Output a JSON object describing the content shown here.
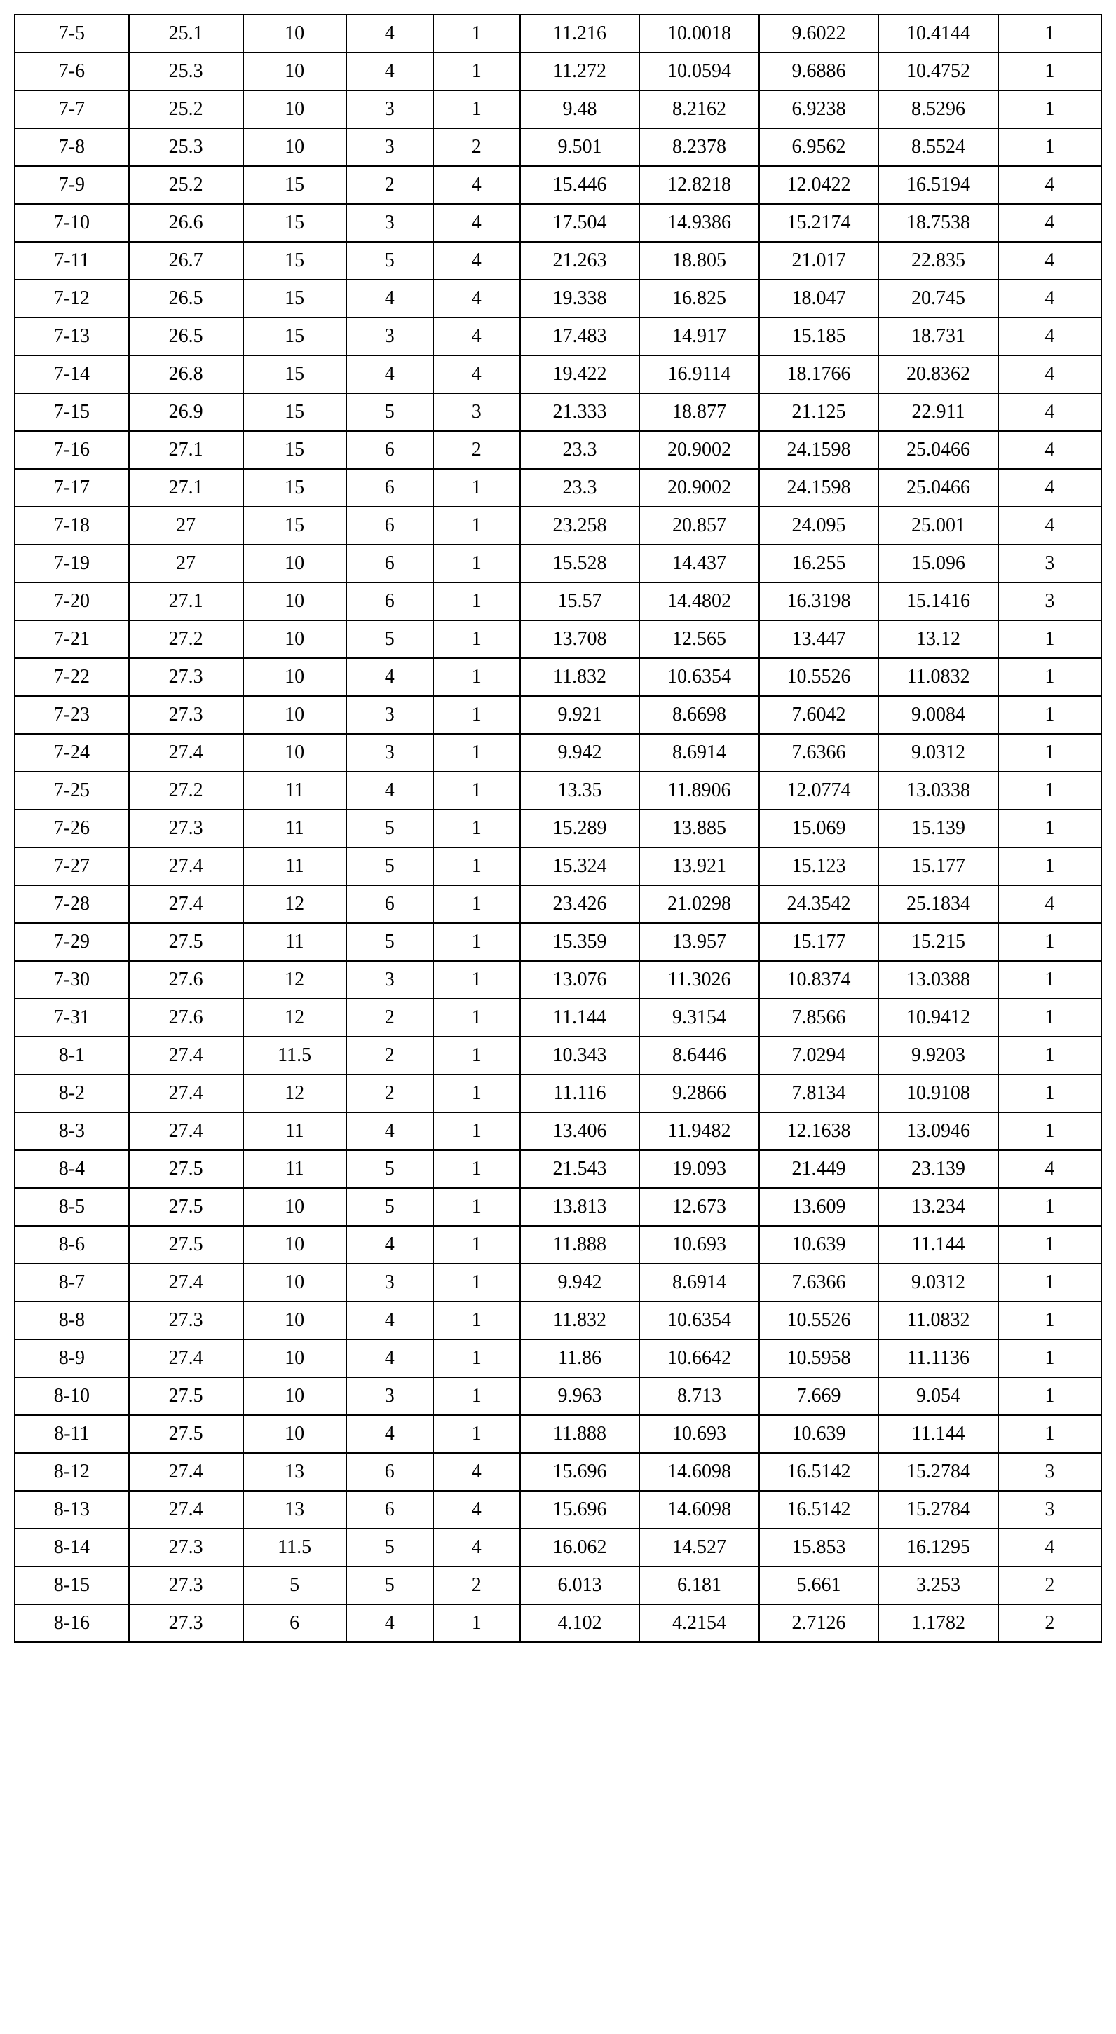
{
  "table": {
    "type": "table",
    "background_color": "#ffffff",
    "border_color": "#000000",
    "border_width": 2,
    "font_family": "Times New Roman",
    "font_size": 28,
    "text_color": "#000000",
    "column_widths_pct": [
      10.5,
      10.5,
      9.5,
      8,
      8,
      11,
      11,
      11,
      11,
      9.5
    ],
    "rows": [
      [
        "7-5",
        "25.1",
        "10",
        "4",
        "1",
        "11.216",
        "10.0018",
        "9.6022",
        "10.4144",
        "1"
      ],
      [
        "7-6",
        "25.3",
        "10",
        "4",
        "1",
        "11.272",
        "10.0594",
        "9.6886",
        "10.4752",
        "1"
      ],
      [
        "7-7",
        "25.2",
        "10",
        "3",
        "1",
        "9.48",
        "8.2162",
        "6.9238",
        "8.5296",
        "1"
      ],
      [
        "7-8",
        "25.3",
        "10",
        "3",
        "2",
        "9.501",
        "8.2378",
        "6.9562",
        "8.5524",
        "1"
      ],
      [
        "7-9",
        "25.2",
        "15",
        "2",
        "4",
        "15.446",
        "12.8218",
        "12.0422",
        "16.5194",
        "4"
      ],
      [
        "7-10",
        "26.6",
        "15",
        "3",
        "4",
        "17.504",
        "14.9386",
        "15.2174",
        "18.7538",
        "4"
      ],
      [
        "7-11",
        "26.7",
        "15",
        "5",
        "4",
        "21.263",
        "18.805",
        "21.017",
        "22.835",
        "4"
      ],
      [
        "7-12",
        "26.5",
        "15",
        "4",
        "4",
        "19.338",
        "16.825",
        "18.047",
        "20.745",
        "4"
      ],
      [
        "7-13",
        "26.5",
        "15",
        "3",
        "4",
        "17.483",
        "14.917",
        "15.185",
        "18.731",
        "4"
      ],
      [
        "7-14",
        "26.8",
        "15",
        "4",
        "4",
        "19.422",
        "16.9114",
        "18.1766",
        "20.8362",
        "4"
      ],
      [
        "7-15",
        "26.9",
        "15",
        "5",
        "3",
        "21.333",
        "18.877",
        "21.125",
        "22.911",
        "4"
      ],
      [
        "7-16",
        "27.1",
        "15",
        "6",
        "2",
        "23.3",
        "20.9002",
        "24.1598",
        "25.0466",
        "4"
      ],
      [
        "7-17",
        "27.1",
        "15",
        "6",
        "1",
        "23.3",
        "20.9002",
        "24.1598",
        "25.0466",
        "4"
      ],
      [
        "7-18",
        "27",
        "15",
        "6",
        "1",
        "23.258",
        "20.857",
        "24.095",
        "25.001",
        "4"
      ],
      [
        "7-19",
        "27",
        "10",
        "6",
        "1",
        "15.528",
        "14.437",
        "16.255",
        "15.096",
        "3"
      ],
      [
        "7-20",
        "27.1",
        "10",
        "6",
        "1",
        "15.57",
        "14.4802",
        "16.3198",
        "15.1416",
        "3"
      ],
      [
        "7-21",
        "27.2",
        "10",
        "5",
        "1",
        "13.708",
        "12.565",
        "13.447",
        "13.12",
        "1"
      ],
      [
        "7-22",
        "27.3",
        "10",
        "4",
        "1",
        "11.832",
        "10.6354",
        "10.5526",
        "11.0832",
        "1"
      ],
      [
        "7-23",
        "27.3",
        "10",
        "3",
        "1",
        "9.921",
        "8.6698",
        "7.6042",
        "9.0084",
        "1"
      ],
      [
        "7-24",
        "27.4",
        "10",
        "3",
        "1",
        "9.942",
        "8.6914",
        "7.6366",
        "9.0312",
        "1"
      ],
      [
        "7-25",
        "27.2",
        "11",
        "4",
        "1",
        "13.35",
        "11.8906",
        "12.0774",
        "13.0338",
        "1"
      ],
      [
        "7-26",
        "27.3",
        "11",
        "5",
        "1",
        "15.289",
        "13.885",
        "15.069",
        "15.139",
        "1"
      ],
      [
        "7-27",
        "27.4",
        "11",
        "5",
        "1",
        "15.324",
        "13.921",
        "15.123",
        "15.177",
        "1"
      ],
      [
        "7-28",
        "27.4",
        "12",
        "6",
        "1",
        "23.426",
        "21.0298",
        "24.3542",
        "25.1834",
        "4"
      ],
      [
        "7-29",
        "27.5",
        "11",
        "5",
        "1",
        "15.359",
        "13.957",
        "15.177",
        "15.215",
        "1"
      ],
      [
        "7-30",
        "27.6",
        "12",
        "3",
        "1",
        "13.076",
        "11.3026",
        "10.8374",
        "13.0388",
        "1"
      ],
      [
        "7-31",
        "27.6",
        "12",
        "2",
        "1",
        "11.144",
        "9.3154",
        "7.8566",
        "10.9412",
        "1"
      ],
      [
        "8-1",
        "27.4",
        "11.5",
        "2",
        "1",
        "10.343",
        "8.6446",
        "7.0294",
        "9.9203",
        "1"
      ],
      [
        "8-2",
        "27.4",
        "12",
        "2",
        "1",
        "11.116",
        "9.2866",
        "7.8134",
        "10.9108",
        "1"
      ],
      [
        "8-3",
        "27.4",
        "11",
        "4",
        "1",
        "13.406",
        "11.9482",
        "12.1638",
        "13.0946",
        "1"
      ],
      [
        "8-4",
        "27.5",
        "11",
        "5",
        "1",
        "21.543",
        "19.093",
        "21.449",
        "23.139",
        "4"
      ],
      [
        "8-5",
        "27.5",
        "10",
        "5",
        "1",
        "13.813",
        "12.673",
        "13.609",
        "13.234",
        "1"
      ],
      [
        "8-6",
        "27.5",
        "10",
        "4",
        "1",
        "11.888",
        "10.693",
        "10.639",
        "11.144",
        "1"
      ],
      [
        "8-7",
        "27.4",
        "10",
        "3",
        "1",
        "9.942",
        "8.6914",
        "7.6366",
        "9.0312",
        "1"
      ],
      [
        "8-8",
        "27.3",
        "10",
        "4",
        "1",
        "11.832",
        "10.6354",
        "10.5526",
        "11.0832",
        "1"
      ],
      [
        "8-9",
        "27.4",
        "10",
        "4",
        "1",
        "11.86",
        "10.6642",
        "10.5958",
        "11.1136",
        "1"
      ],
      [
        "8-10",
        "27.5",
        "10",
        "3",
        "1",
        "9.963",
        "8.713",
        "7.669",
        "9.054",
        "1"
      ],
      [
        "8-11",
        "27.5",
        "10",
        "4",
        "1",
        "11.888",
        "10.693",
        "10.639",
        "11.144",
        "1"
      ],
      [
        "8-12",
        "27.4",
        "13",
        "6",
        "4",
        "15.696",
        "14.6098",
        "16.5142",
        "15.2784",
        "3"
      ],
      [
        "8-13",
        "27.4",
        "13",
        "6",
        "4",
        "15.696",
        "14.6098",
        "16.5142",
        "15.2784",
        "3"
      ],
      [
        "8-14",
        "27.3",
        "11.5",
        "5",
        "4",
        "16.062",
        "14.527",
        "15.853",
        "16.1295",
        "4"
      ],
      [
        "8-15",
        "27.3",
        "5",
        "5",
        "2",
        "6.013",
        "6.181",
        "5.661",
        "3.253",
        "2"
      ],
      [
        "8-16",
        "27.3",
        "6",
        "4",
        "1",
        "4.102",
        "4.2154",
        "2.7126",
        "1.1782",
        "2"
      ]
    ]
  }
}
